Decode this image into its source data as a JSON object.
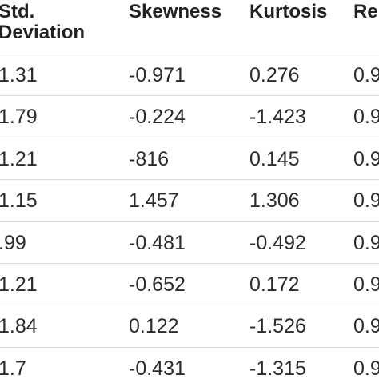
{
  "table": {
    "headers": [
      [
        "Std.",
        "Deviation"
      ],
      [
        "Skewness"
      ],
      [
        "Kurtosis"
      ],
      [
        "Rel"
      ]
    ],
    "rows": [
      [
        "1.31",
        "-0.971",
        "0.276",
        "0.9"
      ],
      [
        "1.79",
        "-0.224",
        "-1.423",
        "0.9"
      ],
      [
        "1.21",
        "-816",
        "0.145",
        "0.9"
      ],
      [
        "1.15",
        "1.457",
        "1.306",
        "0.9"
      ],
      [
        ".99",
        "-0.481",
        "-0.492",
        "0.9"
      ],
      [
        "1.21",
        "-0.652",
        "0.172",
        "0.9"
      ],
      [
        "1.84",
        "0.122",
        "-1.526",
        "0.9"
      ],
      [
        "1.7",
        "-0.431",
        "-1.315",
        "0.9"
      ]
    ]
  }
}
